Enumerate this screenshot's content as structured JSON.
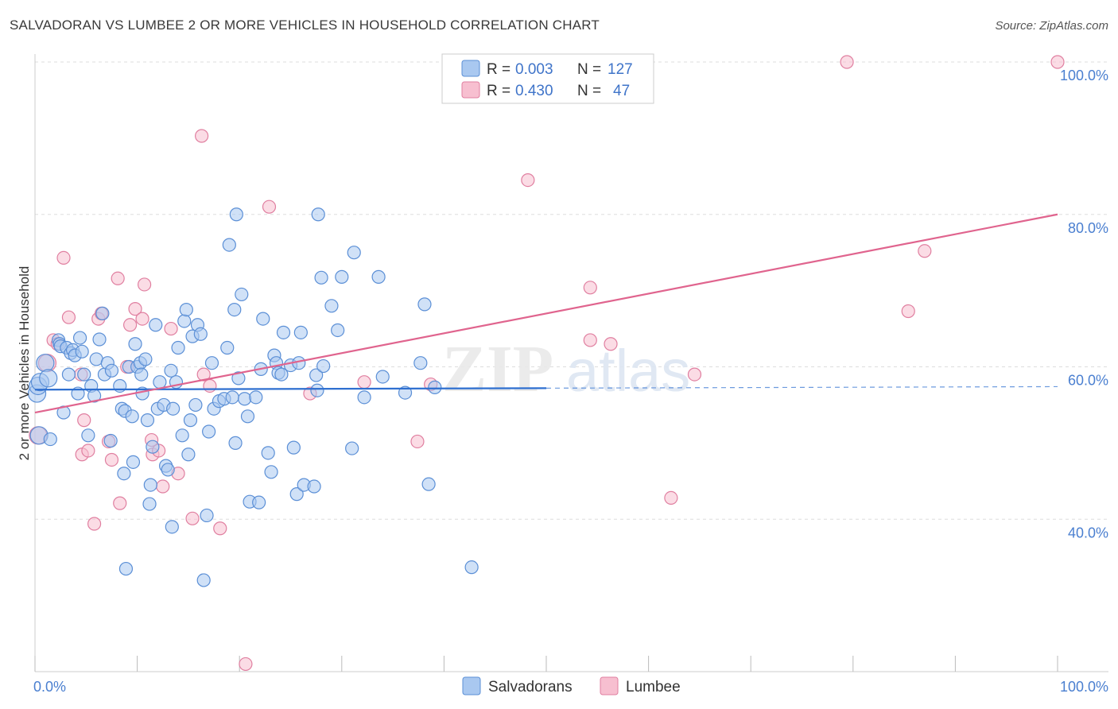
{
  "title": "SALVADORAN VS LUMBEE 2 OR MORE VEHICLES IN HOUSEHOLD CORRELATION CHART",
  "source": "Source: ZipAtlas.com",
  "watermark": {
    "zip": "ZIP",
    "atlas": "atlas"
  },
  "colors": {
    "blue_fill": "#a9c8f0",
    "blue_stroke": "#5b8fd6",
    "blue_line": "#2e6fd0",
    "pink_fill": "#f7bfd0",
    "pink_stroke": "#e07fa0",
    "pink_line": "#e0648e",
    "grid": "#dddddd",
    "axis_text": "#4a7fd0"
  },
  "legend": {
    "r_label": "R =",
    "n_label": "N =",
    "entries": [
      {
        "r": "0.003",
        "n": "127",
        "color": "blue"
      },
      {
        "r": "0.430",
        "n": "47",
        "color": "pink"
      }
    ]
  },
  "chart_data": {
    "type": "scatter",
    "xlabel": "",
    "ylabel": "2 or more Vehicles in Household",
    "xlim": [
      0,
      100
    ],
    "ylim": [
      20,
      100
    ],
    "x_tick_labels": [
      "0.0%",
      "100.0%"
    ],
    "y_ticks": [
      40,
      60,
      80,
      100
    ],
    "y_tick_labels": [
      "40.0%",
      "60.0%",
      "80.0%",
      "100.0%"
    ],
    "grid": true,
    "legend_position": "bottom",
    "series": [
      {
        "name": "Salvadorans",
        "color": "blue",
        "trend": {
          "x": [
            0,
            100
          ],
          "y": [
            57.0,
            57.4
          ],
          "solid_until": 50
        },
        "points": [
          [
            0.2,
            56.5
          ],
          [
            0.3,
            57.5
          ],
          [
            0.4,
            51
          ],
          [
            0.5,
            58
          ],
          [
            1.0,
            60.5
          ],
          [
            1.3,
            58.5
          ],
          [
            1.5,
            50.5
          ],
          [
            2.3,
            63.5
          ],
          [
            2.4,
            63
          ],
          [
            2.5,
            62.7
          ],
          [
            2.8,
            54
          ],
          [
            3.1,
            62.5
          ],
          [
            3.3,
            59
          ],
          [
            3.5,
            61.8
          ],
          [
            3.7,
            62.2
          ],
          [
            3.9,
            61.5
          ],
          [
            4.2,
            56.5
          ],
          [
            4.4,
            63.8
          ],
          [
            4.6,
            62
          ],
          [
            4.8,
            59
          ],
          [
            5.2,
            51
          ],
          [
            5.5,
            57.5
          ],
          [
            5.8,
            56.2
          ],
          [
            6.0,
            61
          ],
          [
            6.3,
            63.6
          ],
          [
            6.6,
            67
          ],
          [
            6.8,
            59
          ],
          [
            7.1,
            60.5
          ],
          [
            7.4,
            50.3
          ],
          [
            7.5,
            59.5
          ],
          [
            8.3,
            57.5
          ],
          [
            8.5,
            54.5
          ],
          [
            8.7,
            46
          ],
          [
            8.8,
            54.2
          ],
          [
            8.9,
            33.5
          ],
          [
            9.2,
            60
          ],
          [
            9.5,
            53.5
          ],
          [
            9.6,
            47.5
          ],
          [
            9.8,
            63
          ],
          [
            10.0,
            60
          ],
          [
            10.3,
            60.5
          ],
          [
            10.4,
            59
          ],
          [
            10.5,
            56.5
          ],
          [
            10.8,
            61
          ],
          [
            11.0,
            53
          ],
          [
            11.2,
            42
          ],
          [
            11.3,
            44.5
          ],
          [
            11.5,
            49.5
          ],
          [
            11.8,
            65.5
          ],
          [
            12.0,
            54.5
          ],
          [
            12.2,
            58
          ],
          [
            12.6,
            55
          ],
          [
            12.8,
            47
          ],
          [
            13.0,
            46.5
          ],
          [
            13.3,
            59.5
          ],
          [
            13.4,
            39
          ],
          [
            13.5,
            54.5
          ],
          [
            13.8,
            58
          ],
          [
            14.0,
            62.5
          ],
          [
            14.4,
            51
          ],
          [
            14.6,
            66
          ],
          [
            14.8,
            67.5
          ],
          [
            15.0,
            48.5
          ],
          [
            15.2,
            53
          ],
          [
            15.4,
            64
          ],
          [
            15.7,
            55
          ],
          [
            15.9,
            65.5
          ],
          [
            16.2,
            64.3
          ],
          [
            16.5,
            32
          ],
          [
            16.8,
            40.5
          ],
          [
            17.0,
            51.5
          ],
          [
            17.3,
            60.5
          ],
          [
            17.5,
            54.5
          ],
          [
            18.0,
            55.5
          ],
          [
            18.5,
            55.8
          ],
          [
            18.8,
            62.5
          ],
          [
            19.0,
            76
          ],
          [
            19.3,
            56
          ],
          [
            19.5,
            67.5
          ],
          [
            19.6,
            50
          ],
          [
            19.7,
            80
          ],
          [
            19.9,
            58.5
          ],
          [
            20.2,
            69.5
          ],
          [
            20.5,
            55.8
          ],
          [
            20.8,
            53.5
          ],
          [
            21.0,
            42.3
          ],
          [
            21.6,
            56
          ],
          [
            21.9,
            42.2
          ],
          [
            22.1,
            59.7
          ],
          [
            22.3,
            66.3
          ],
          [
            22.8,
            48.7
          ],
          [
            23.1,
            46.2
          ],
          [
            23.4,
            61.5
          ],
          [
            23.6,
            60.5
          ],
          [
            23.8,
            59.2
          ],
          [
            24.1,
            59
          ],
          [
            24.3,
            64.5
          ],
          [
            25.0,
            60.2
          ],
          [
            25.3,
            49.4
          ],
          [
            25.6,
            43.3
          ],
          [
            25.8,
            60.5
          ],
          [
            26.0,
            64.5
          ],
          [
            26.3,
            44.5
          ],
          [
            27.3,
            44.3
          ],
          [
            27.5,
            58.9
          ],
          [
            27.6,
            56.9
          ],
          [
            27.7,
            80
          ],
          [
            28.0,
            71.7
          ],
          [
            28.2,
            60.1
          ],
          [
            29.0,
            68
          ],
          [
            29.6,
            64.8
          ],
          [
            30.0,
            71.8
          ],
          [
            31.0,
            49.3
          ],
          [
            31.2,
            75
          ],
          [
            32.2,
            56
          ],
          [
            33.6,
            71.8
          ],
          [
            34.0,
            58.7
          ],
          [
            36.2,
            56.6
          ],
          [
            37.7,
            60.5
          ],
          [
            38.1,
            68.2
          ],
          [
            38.5,
            44.6
          ],
          [
            39.1,
            57.3
          ],
          [
            42.7,
            33.7
          ]
        ]
      },
      {
        "name": "Lumbee",
        "color": "pink",
        "trend": {
          "x": [
            0,
            100
          ],
          "y": [
            54.0,
            80.0
          ],
          "solid_until": 100
        },
        "points": [
          [
            0.3,
            51
          ],
          [
            1.2,
            60.5
          ],
          [
            1.8,
            63.5
          ],
          [
            2.2,
            63
          ],
          [
            2.8,
            74.3
          ],
          [
            3.3,
            66.5
          ],
          [
            4.5,
            59
          ],
          [
            4.6,
            48.5
          ],
          [
            4.8,
            53
          ],
          [
            5.2,
            49
          ],
          [
            5.8,
            39.4
          ],
          [
            6.2,
            66.3
          ],
          [
            6.5,
            67
          ],
          [
            7.2,
            50.2
          ],
          [
            7.5,
            47.8
          ],
          [
            8.1,
            71.6
          ],
          [
            8.3,
            42.1
          ],
          [
            9.0,
            60
          ],
          [
            9.3,
            65.5
          ],
          [
            9.8,
            67.6
          ],
          [
            10.5,
            66.3
          ],
          [
            10.7,
            70.8
          ],
          [
            11.4,
            50.4
          ],
          [
            11.5,
            48.5
          ],
          [
            12.1,
            49
          ],
          [
            12.5,
            44.3
          ],
          [
            13.3,
            65
          ],
          [
            14.0,
            46
          ],
          [
            15.4,
            40.1
          ],
          [
            16.3,
            90.3
          ],
          [
            16.5,
            59
          ],
          [
            17.1,
            57.5
          ],
          [
            18.1,
            38.8
          ],
          [
            20.6,
            21
          ],
          [
            22.9,
            81
          ],
          [
            26.9,
            56.5
          ],
          [
            32.2,
            58
          ],
          [
            37.4,
            50.2
          ],
          [
            38.7,
            57.7
          ],
          [
            48.2,
            84.5
          ],
          [
            54.3,
            70.4
          ],
          [
            54.3,
            63.5
          ],
          [
            56.3,
            63
          ],
          [
            62.2,
            42.8
          ],
          [
            64.5,
            59
          ],
          [
            79.4,
            100
          ],
          [
            85.4,
            67.3
          ],
          [
            87.0,
            75.2
          ],
          [
            100,
            100
          ]
        ]
      }
    ]
  },
  "bottom_legend": [
    "Salvadorans",
    "Lumbee"
  ]
}
